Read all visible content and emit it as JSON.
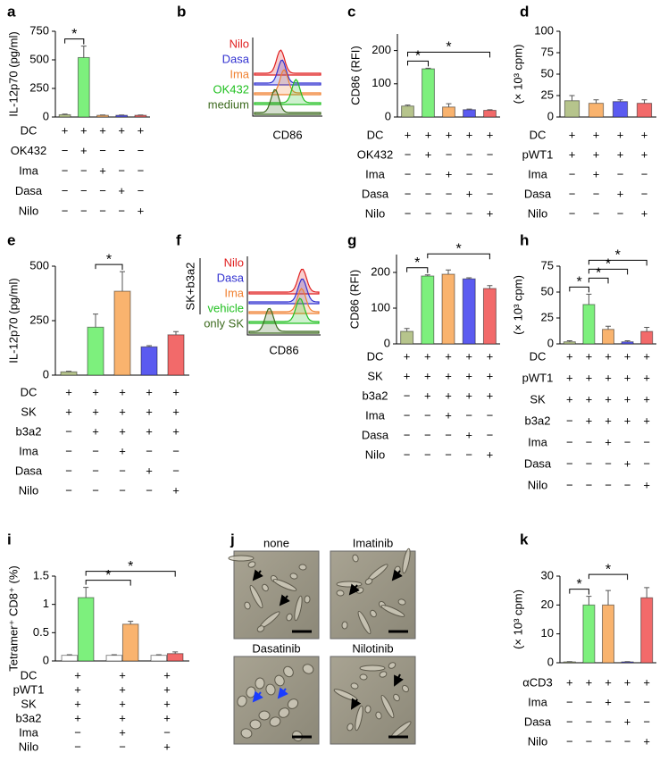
{
  "chart_data": [
    {
      "type": "bar",
      "panel": "a",
      "ylabel": "IL-12p70 (pg/ml)",
      "ylim": [
        0,
        750
      ],
      "yticks": [
        0,
        250,
        500,
        750
      ],
      "values": [
        20,
        520,
        15,
        15,
        15
      ],
      "errors": [
        5,
        100,
        3,
        3,
        3
      ],
      "colors": [
        "#b6c48c",
        "#7df07d",
        "#f9b36e",
        "#5b5bf0",
        "#f26a6a"
      ],
      "brackets": [
        {
          "bars": [
            0,
            1
          ],
          "label": "*"
        }
      ],
      "conditions": [
        {
          "label": "DC",
          "signs": [
            "+",
            "+",
            "+",
            "+",
            "+"
          ]
        },
        {
          "label": "OK432",
          "signs": [
            "−",
            "+",
            "−",
            "−",
            "−"
          ]
        },
        {
          "label": "Ima",
          "signs": [
            "−",
            "−",
            "+",
            "−",
            "−"
          ]
        },
        {
          "label": "Dasa",
          "signs": [
            "−",
            "−",
            "−",
            "+",
            "−"
          ]
        },
        {
          "label": "Nilo",
          "signs": [
            "−",
            "−",
            "−",
            "−",
            "+"
          ]
        }
      ]
    },
    {
      "type": "overlay",
      "panel": "b",
      "xlabel": "CD86",
      "series": [
        {
          "name": "Nilo",
          "color": "#e02020"
        },
        {
          "name": "Dasa",
          "color": "#3030d0"
        },
        {
          "name": "Ima",
          "color": "#f08030"
        },
        {
          "name": "OK432",
          "color": "#20c020"
        },
        {
          "name": "medium",
          "color": "#3c6a1e"
        }
      ]
    },
    {
      "type": "bar",
      "panel": "c",
      "ylabel": "CD86 (RFI)",
      "ylim": [
        0,
        250
      ],
      "yticks": [
        0,
        100,
        200
      ],
      "values": [
        33,
        145,
        30,
        22,
        20
      ],
      "errors": [
        3,
        2,
        10,
        2,
        2
      ],
      "colors": [
        "#b6c48c",
        "#7df07d",
        "#f9b36e",
        "#5b5bf0",
        "#f26a6a"
      ],
      "brackets": [
        {
          "bars": [
            0,
            1
          ],
          "label": "*"
        },
        {
          "bars": [
            0,
            4
          ],
          "label": "*"
        }
      ],
      "conditions": [
        {
          "label": "DC",
          "signs": [
            "+",
            "+",
            "+",
            "+",
            "+"
          ]
        },
        {
          "label": "OK432",
          "signs": [
            "−",
            "+",
            "−",
            "−",
            "−"
          ]
        },
        {
          "label": "Ima",
          "signs": [
            "−",
            "−",
            "+",
            "−",
            "−"
          ]
        },
        {
          "label": "Dasa",
          "signs": [
            "−",
            "−",
            "−",
            "+",
            "−"
          ]
        },
        {
          "label": "Nilo",
          "signs": [
            "−",
            "−",
            "−",
            "−",
            "+"
          ]
        }
      ]
    },
    {
      "type": "bar",
      "panel": "d",
      "ylabel": "(× 10³ cpm)",
      "ylim": [
        0,
        100
      ],
      "yticks": [
        0,
        25,
        50,
        75,
        100
      ],
      "values": [
        19,
        16,
        18,
        16
      ],
      "errors": [
        6,
        4,
        2,
        4
      ],
      "colors": [
        "#b6c48c",
        "#f9b36e",
        "#5b5bf0",
        "#f26a6a"
      ],
      "brackets": [],
      "conditions": [
        {
          "label": "DC",
          "signs": [
            "+",
            "+",
            "+",
            "+"
          ]
        },
        {
          "label": "pWT1",
          "signs": [
            "+",
            "+",
            "+",
            "+"
          ]
        },
        {
          "label": "Ima",
          "signs": [
            "−",
            "+",
            "−",
            "−"
          ]
        },
        {
          "label": "Dasa",
          "signs": [
            "−",
            "−",
            "+",
            "−"
          ]
        },
        {
          "label": "Nilo",
          "signs": [
            "−",
            "−",
            "−",
            "+"
          ]
        }
      ]
    },
    {
      "type": "bar",
      "panel": "e",
      "ylabel": "IL-12p70 (pg/ml)",
      "ylim": [
        0,
        500
      ],
      "yticks": [
        0,
        250,
        500
      ],
      "values": [
        15,
        220,
        385,
        130,
        185
      ],
      "errors": [
        3,
        60,
        90,
        5,
        15
      ],
      "colors": [
        "#b6c48c",
        "#7df07d",
        "#f9b36e",
        "#5b5bf0",
        "#f26a6a"
      ],
      "brackets": [
        {
          "bars": [
            1,
            2
          ],
          "label": "*"
        }
      ],
      "conditions": [
        {
          "label": "DC",
          "signs": [
            "+",
            "+",
            "+",
            "+",
            "+"
          ]
        },
        {
          "label": "SK",
          "signs": [
            "+",
            "+",
            "+",
            "+",
            "+"
          ]
        },
        {
          "label": "b3a2",
          "signs": [
            "−",
            "+",
            "+",
            "+",
            "+"
          ]
        },
        {
          "label": "Ima",
          "signs": [
            "−",
            "−",
            "+",
            "−",
            "−"
          ]
        },
        {
          "label": "Dasa",
          "signs": [
            "−",
            "−",
            "−",
            "+",
            "−"
          ]
        },
        {
          "label": "Nilo",
          "signs": [
            "−",
            "−",
            "−",
            "−",
            "+"
          ]
        }
      ]
    },
    {
      "type": "overlay",
      "panel": "f",
      "xlabel": "CD86",
      "group_label": "SK+b3a2",
      "series": [
        {
          "name": "Nilo",
          "color": "#e02020"
        },
        {
          "name": "Dasa",
          "color": "#3030d0"
        },
        {
          "name": "Ima",
          "color": "#f08030"
        },
        {
          "name": "vehicle",
          "color": "#20c020"
        },
        {
          "name": "only SK",
          "color": "#3c6a1e"
        }
      ]
    },
    {
      "type": "bar",
      "panel": "g",
      "ylabel": "CD86 (RFI)",
      "ylim": [
        0,
        250
      ],
      "yticks": [
        0,
        100,
        200
      ],
      "values": [
        35,
        190,
        195,
        182,
        155
      ],
      "errors": [
        8,
        3,
        12,
        3,
        8
      ],
      "colors": [
        "#b6c48c",
        "#7df07d",
        "#f9b36e",
        "#5b5bf0",
        "#f26a6a"
      ],
      "brackets": [
        {
          "bars": [
            0,
            1
          ],
          "label": "*"
        },
        {
          "bars": [
            1,
            4
          ],
          "label": "*"
        }
      ],
      "conditions": [
        {
          "label": "DC",
          "signs": [
            "+",
            "+",
            "+",
            "+",
            "+"
          ]
        },
        {
          "label": "SK",
          "signs": [
            "+",
            "+",
            "+",
            "+",
            "+"
          ]
        },
        {
          "label": "b3a2",
          "signs": [
            "−",
            "+",
            "+",
            "+",
            "+"
          ]
        },
        {
          "label": "Ima",
          "signs": [
            "−",
            "−",
            "+",
            "−",
            "−"
          ]
        },
        {
          "label": "Dasa",
          "signs": [
            "−",
            "−",
            "−",
            "+",
            "−"
          ]
        },
        {
          "label": "Nilo",
          "signs": [
            "−",
            "−",
            "−",
            "−",
            "+"
          ]
        }
      ]
    },
    {
      "type": "bar",
      "panel": "h",
      "ylabel": "(× 10³ cpm)",
      "ylim": [
        0,
        75
      ],
      "yticks": [
        0,
        25,
        50,
        75
      ],
      "values": [
        2,
        38,
        14,
        2,
        12
      ],
      "errors": [
        1,
        10,
        3,
        1,
        4
      ],
      "colors": [
        "#b6c48c",
        "#7df07d",
        "#f9b36e",
        "#5b5bf0",
        "#f26a6a"
      ],
      "brackets": [
        {
          "bars": [
            0,
            1
          ],
          "label": "*"
        },
        {
          "bars": [
            1,
            2
          ],
          "label": "*"
        },
        {
          "bars": [
            1,
            3
          ],
          "label": "*"
        },
        {
          "bars": [
            1,
            4
          ],
          "label": "*"
        }
      ],
      "conditions": [
        {
          "label": "DC",
          "signs": [
            "+",
            "+",
            "+",
            "+",
            "+"
          ]
        },
        {
          "label": "pWT1",
          "signs": [
            "+",
            "+",
            "+",
            "+",
            "+"
          ]
        },
        {
          "label": "SK",
          "signs": [
            "+",
            "+",
            "+",
            "+",
            "+"
          ]
        },
        {
          "label": "b3a2",
          "signs": [
            "−",
            "+",
            "+",
            "+",
            "+"
          ]
        },
        {
          "label": "Ima",
          "signs": [
            "−",
            "−",
            "+",
            "−",
            "−"
          ]
        },
        {
          "label": "Dasa",
          "signs": [
            "−",
            "−",
            "−",
            "+",
            "−"
          ]
        },
        {
          "label": "Nilo",
          "signs": [
            "−",
            "−",
            "−",
            "−",
            "+"
          ]
        }
      ]
    },
    {
      "type": "bar",
      "panel": "i",
      "ylabel": "Tetramer⁺ CD8⁺ (%)",
      "ylim": [
        0,
        1.5
      ],
      "yticks": [
        0,
        0.5,
        1,
        1.5
      ],
      "values": [
        0.1,
        1.12,
        0.1,
        0.65,
        0.1,
        0.13
      ],
      "errors": [
        0.01,
        0.18,
        0.01,
        0.05,
        0.01,
        0.03
      ],
      "colors": [
        "#ffffff",
        "#7df07d",
        "#ffffff",
        "#f9b36e",
        "#ffffff",
        "#f26a6a"
      ],
      "brackets": [
        {
          "bars": [
            1,
            3
          ],
          "label": "*"
        },
        {
          "bars": [
            1,
            5
          ],
          "label": "*"
        }
      ],
      "conditions": [
        {
          "label": "DC",
          "signs": [
            "+",
            "+",
            "+"
          ]
        },
        {
          "label": "pWT1",
          "signs": [
            "+",
            "+",
            "+"
          ]
        },
        {
          "label": "SK",
          "signs": [
            "+",
            "+",
            "+"
          ]
        },
        {
          "label": "b3a2",
          "signs": [
            "+",
            "+",
            "+"
          ]
        },
        {
          "label": "Ima",
          "signs": [
            "−",
            "+",
            "−"
          ]
        },
        {
          "label": "Nilo",
          "signs": [
            "−",
            "−",
            "+"
          ]
        }
      ]
    },
    {
      "type": "images",
      "panel": "j",
      "images": [
        {
          "label": "none"
        },
        {
          "label": "Imatinib"
        },
        {
          "label": "Dasatinib"
        },
        {
          "label": "Nilotinib"
        }
      ]
    },
    {
      "type": "bar",
      "panel": "k",
      "ylabel": "(× 10³ cpm)",
      "ylim": [
        0,
        30
      ],
      "yticks": [
        0,
        10,
        20,
        30
      ],
      "values": [
        0.3,
        20,
        20,
        0.3,
        22.5
      ],
      "errors": [
        0.1,
        3,
        5,
        0.1,
        3.5
      ],
      "colors": [
        "#b6c48c",
        "#7df07d",
        "#f9b36e",
        "#5b5bf0",
        "#f26a6a"
      ],
      "brackets": [
        {
          "bars": [
            0,
            1
          ],
          "label": "*"
        },
        {
          "bars": [
            1,
            3
          ],
          "label": "*"
        }
      ],
      "conditions": [
        {
          "label": "αCD3",
          "signs": [
            "+",
            "+",
            "+",
            "+",
            "+"
          ]
        },
        {
          "label": "Ima",
          "signs": [
            "−",
            "−",
            "+",
            "−",
            "−"
          ]
        },
        {
          "label": "Dasa",
          "signs": [
            "−",
            "−",
            "−",
            "+",
            "−"
          ]
        },
        {
          "label": "Nilo",
          "signs": [
            "−",
            "−",
            "−",
            "−",
            "+"
          ]
        }
      ]
    }
  ]
}
